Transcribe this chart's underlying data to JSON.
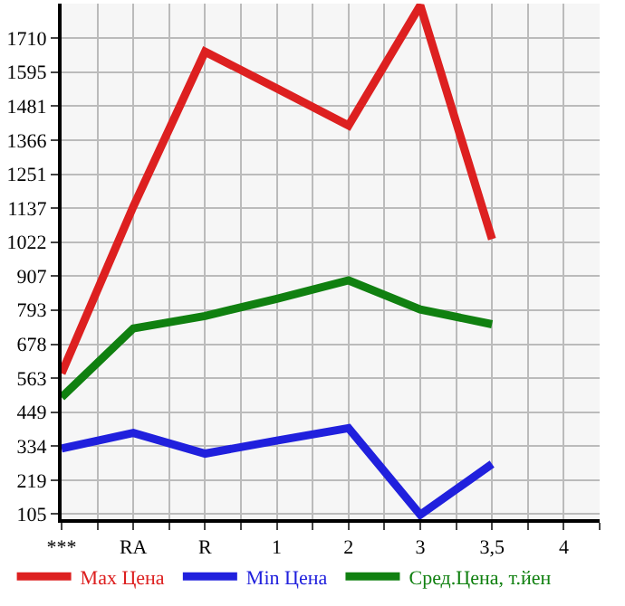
{
  "chart_data": {
    "type": "line",
    "categories": [
      "***",
      "RA",
      "R",
      "1",
      "2",
      "3",
      "3,5",
      "4"
    ],
    "series": [
      {
        "name": "Max Цена",
        "color": "#dd2020",
        "values": [
          580,
          1142,
          1664,
          1540,
          1415,
          1820,
          1032,
          null
        ]
      },
      {
        "name": "Min Цена",
        "color": "#2020dd",
        "values": [
          326,
          379,
          309,
          353,
          395,
          103,
          274,
          null
        ]
      },
      {
        "name": "Сред.Цена, т.йен",
        "color": "#108010",
        "values": [
          499,
          731,
          773,
          831,
          893,
          795,
          745,
          null
        ]
      }
    ],
    "ylim": [
      88,
      1826
    ],
    "yticks": [
      105,
      219,
      334,
      449,
      563,
      678,
      793,
      907,
      1022,
      1137,
      1251,
      1366,
      1481,
      1595,
      1710
    ],
    "grid": true,
    "legend": "bottom",
    "marker": "none",
    "line_style": "solid"
  }
}
